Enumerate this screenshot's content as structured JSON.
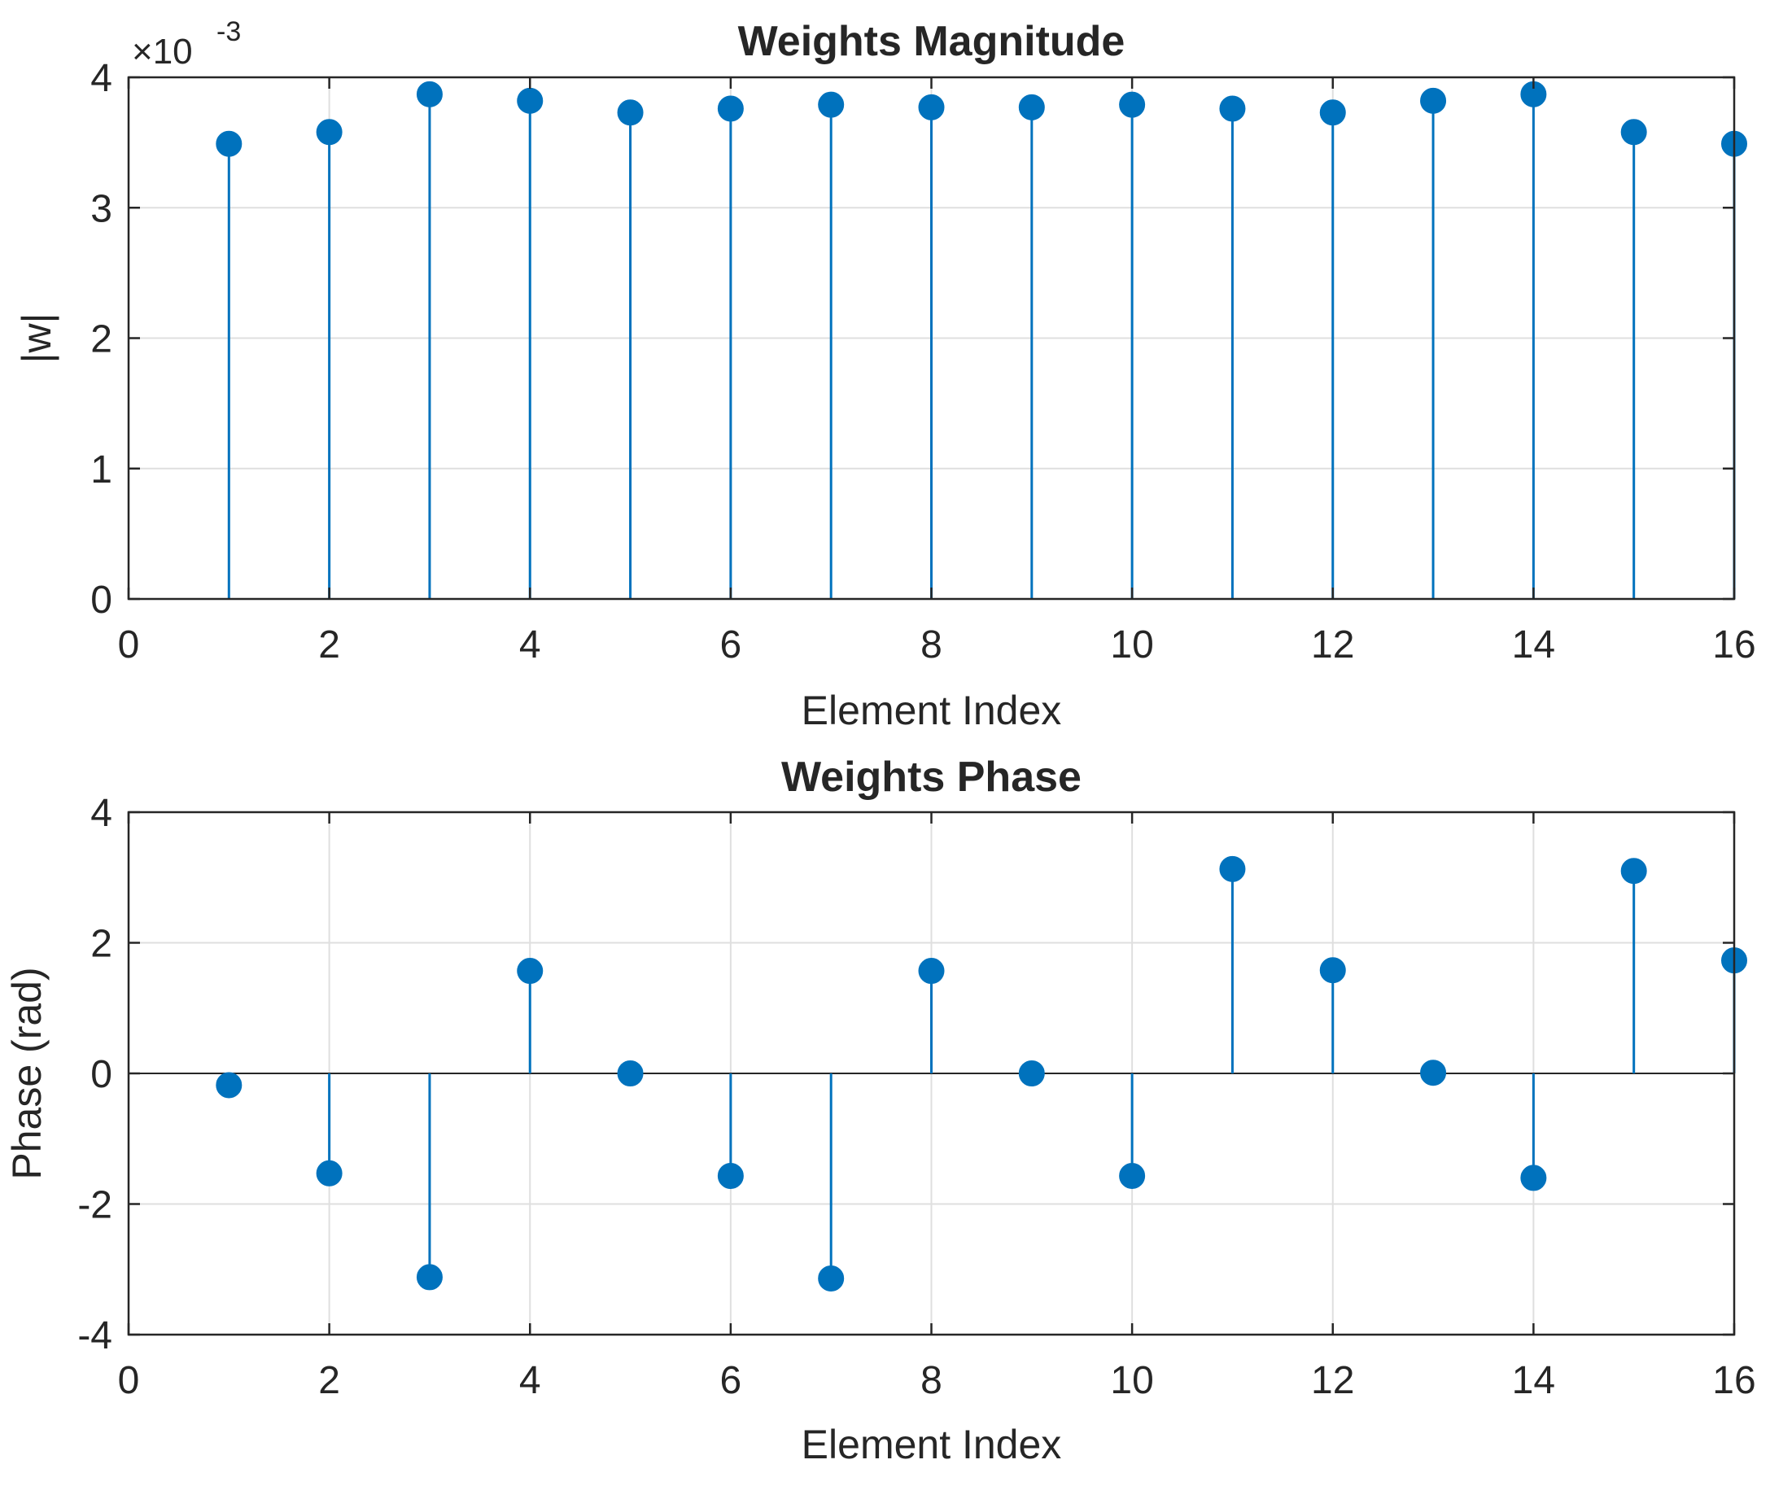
{
  "chart_data": [
    {
      "type": "stem",
      "title": "Weights Magnitude",
      "xlabel": "Element Index",
      "ylabel": "|w|",
      "exponent_label": "×10",
      "exponent_power": "-3",
      "xlim": [
        0,
        16
      ],
      "ylim": [
        0,
        4
      ],
      "xticks": [
        0,
        2,
        4,
        6,
        8,
        10,
        12,
        14,
        16
      ],
      "yticks": [
        0,
        1,
        2,
        3,
        4
      ],
      "grid": true,
      "x": [
        1,
        2,
        3,
        4,
        5,
        6,
        7,
        8,
        9,
        10,
        11,
        12,
        13,
        14,
        15,
        16
      ],
      "y": [
        3.49,
        3.58,
        3.87,
        3.82,
        3.73,
        3.76,
        3.79,
        3.77,
        3.77,
        3.79,
        3.76,
        3.73,
        3.82,
        3.87,
        3.58,
        3.49
      ]
    },
    {
      "type": "stem",
      "title": "Weights Phase",
      "xlabel": "Element Index",
      "ylabel": "Phase (rad)",
      "xlim": [
        0,
        16
      ],
      "ylim": [
        -4,
        4
      ],
      "xticks": [
        0,
        2,
        4,
        6,
        8,
        10,
        12,
        14,
        16
      ],
      "yticks": [
        -4,
        -2,
        0,
        2,
        4
      ],
      "grid": true,
      "x": [
        1,
        2,
        3,
        4,
        5,
        6,
        7,
        8,
        9,
        10,
        11,
        12,
        13,
        14,
        15,
        16
      ],
      "y": [
        -0.18,
        -1.53,
        -3.12,
        1.57,
        0.0,
        -1.57,
        -3.14,
        1.57,
        0.0,
        -1.57,
        3.13,
        1.58,
        0.01,
        -1.6,
        3.1,
        1.73
      ]
    }
  ],
  "colors": {
    "series": "#0072BD",
    "axes": "#262626",
    "grid": "#DFDFDF",
    "baseline": "#262626"
  }
}
